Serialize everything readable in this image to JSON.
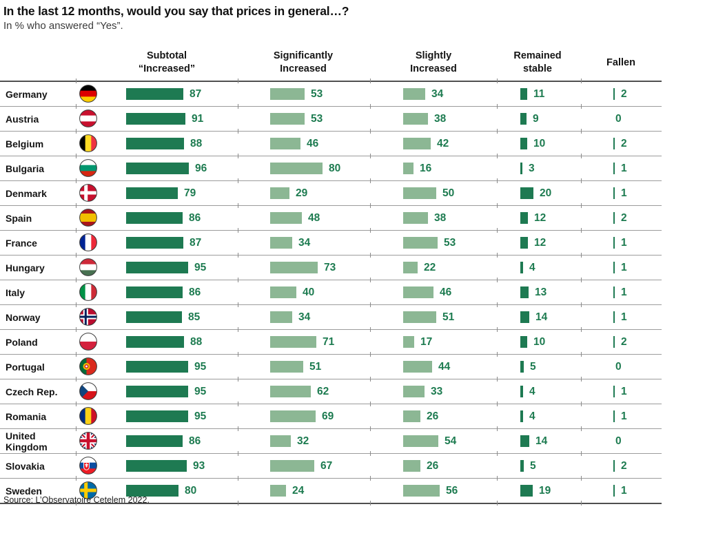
{
  "title": "In the last 12 months, would you say that prices in general…?",
  "subtitle": "In % who answered “Yes”.",
  "source": "Source: L’Observatoire Cetelem 2022.",
  "columns": [
    {
      "line1": "Subtotal",
      "line2": "“Increased”"
    },
    {
      "line1": "Significantly",
      "line2": "Increased"
    },
    {
      "line1": "Slightly",
      "line2": "Increased"
    },
    {
      "line1": "Remained",
      "line2": "stable"
    },
    {
      "line1": "Fallen",
      "line2": ""
    }
  ],
  "colors": {
    "dark_green": "#1E7A52",
    "light_green": "#8CB794",
    "value_text": "#1D7B50",
    "row_line": "#9b9b9b",
    "strong_line": "#4f4f4f"
  },
  "chart_data": {
    "type": "bar",
    "title": "In the last 12 months, would you say that prices in general…?",
    "subtitle": "In % who answered “Yes”.",
    "unit": "%",
    "value_range": [
      0,
      100
    ],
    "categories": [
      "Germany",
      "Austria",
      "Belgium",
      "Bulgaria",
      "Denmark",
      "Spain",
      "France",
      "Hungary",
      "Italy",
      "Norway",
      "Poland",
      "Portugal",
      "Czech Rep.",
      "Romania",
      "United Kingdom",
      "Slovakia",
      "Sweden"
    ],
    "series": [
      {
        "name": "Subtotal “Increased”",
        "color_role": "dark",
        "values": [
          87,
          91,
          88,
          96,
          79,
          86,
          87,
          95,
          86,
          85,
          88,
          95,
          95,
          95,
          86,
          93,
          80
        ]
      },
      {
        "name": "Significantly Increased",
        "color_role": "light",
        "values": [
          53,
          53,
          46,
          80,
          29,
          48,
          34,
          73,
          40,
          34,
          71,
          51,
          62,
          69,
          32,
          67,
          24
        ]
      },
      {
        "name": "Slightly Increased",
        "color_role": "light",
        "values": [
          34,
          38,
          42,
          16,
          50,
          38,
          53,
          22,
          46,
          51,
          17,
          44,
          33,
          26,
          54,
          26,
          56
        ]
      },
      {
        "name": "Remained stable",
        "color_role": "dark",
        "values": [
          11,
          9,
          10,
          3,
          20,
          12,
          12,
          4,
          13,
          14,
          10,
          5,
          4,
          4,
          14,
          5,
          19
        ]
      },
      {
        "name": "Fallen",
        "color_role": "dark",
        "values": [
          2,
          0,
          2,
          1,
          1,
          2,
          1,
          1,
          1,
          1,
          2,
          0,
          1,
          1,
          0,
          2,
          1
        ]
      }
    ]
  },
  "countries": [
    {
      "name": "Germany",
      "flag": {
        "kind": "hstripes",
        "stripes": [
          "#000000",
          "#DD0000",
          "#FFCE00"
        ]
      }
    },
    {
      "name": "Austria",
      "flag": {
        "kind": "hstripes",
        "stripes": [
          "#C8102E",
          "#FFFFFF",
          "#C8102E"
        ]
      }
    },
    {
      "name": "Belgium",
      "flag": {
        "kind": "vstripes",
        "stripes": [
          "#000000",
          "#FDDA24",
          "#EF3340"
        ]
      }
    },
    {
      "name": "Bulgaria",
      "flag": {
        "kind": "hstripes",
        "stripes": [
          "#FFFFFF",
          "#00966E",
          "#D62612"
        ]
      }
    },
    {
      "name": "Denmark",
      "flag": {
        "kind": "nordic",
        "bg": "#C8102E",
        "cross": "#FFFFFF"
      }
    },
    {
      "name": "Spain",
      "flag": {
        "kind": "hstripes",
        "stripes": [
          "#AA151B",
          "#F1BF00",
          "#AA151B"
        ],
        "weights": [
          0.27,
          0.46,
          0.27
        ]
      }
    },
    {
      "name": "France",
      "flag": {
        "kind": "vstripes",
        "stripes": [
          "#002395",
          "#FFFFFF",
          "#ED2939"
        ]
      }
    },
    {
      "name": "Hungary",
      "flag": {
        "kind": "hstripes",
        "stripes": [
          "#CE2939",
          "#FFFFFF",
          "#477050"
        ]
      }
    },
    {
      "name": "Italy",
      "flag": {
        "kind": "vstripes",
        "stripes": [
          "#009246",
          "#FFFFFF",
          "#CE2B37"
        ]
      }
    },
    {
      "name": "Norway",
      "flag": {
        "kind": "nordic2",
        "bg": "#BA0C2F",
        "outer": "#FFFFFF",
        "inner": "#00205B"
      }
    },
    {
      "name": "Poland",
      "flag": {
        "kind": "hstripes",
        "stripes": [
          "#FFFFFF",
          "#D4213D"
        ],
        "weights": [
          0.5,
          0.5
        ]
      }
    },
    {
      "name": "Portugal",
      "flag": {
        "kind": "portugal",
        "left": "#046A38",
        "right": "#DA291C",
        "emblem": "#F1BF00"
      }
    },
    {
      "name": "Czech Rep.",
      "flag": {
        "kind": "czech",
        "top": "#FFFFFF",
        "bottom": "#D7141A",
        "triangle": "#11457E"
      }
    },
    {
      "name": "Romania",
      "flag": {
        "kind": "vstripes",
        "stripes": [
          "#002B7F",
          "#FCD116",
          "#CE1126"
        ]
      }
    },
    {
      "name": "United Kingdom",
      "flag": {
        "kind": "uk",
        "bg": "#012169",
        "cross": "#C8102E",
        "white": "#FFFFFF"
      }
    },
    {
      "name": "Slovakia",
      "flag": {
        "kind": "slovakia",
        "stripes": [
          "#FFFFFF",
          "#0B4EA2",
          "#EE1C25"
        ]
      }
    },
    {
      "name": "Sweden",
      "flag": {
        "kind": "nordic",
        "bg": "#006AA7",
        "cross": "#FECC02"
      }
    }
  ]
}
